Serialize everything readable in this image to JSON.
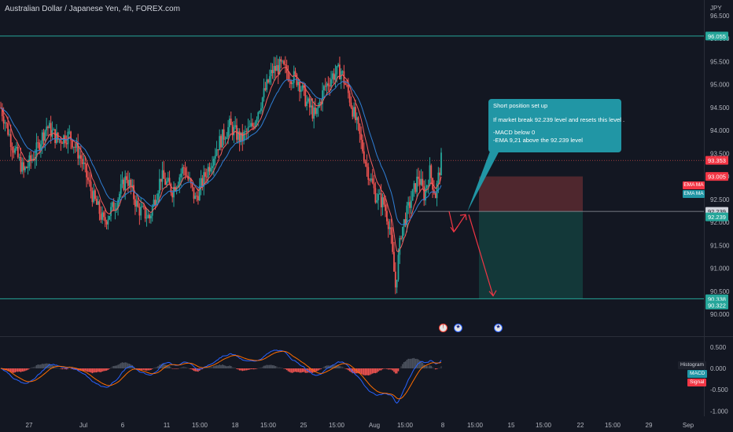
{
  "symbol_title": "Australian Dollar / Japanese Yen, 4h, FOREX.com",
  "currency": "JPY",
  "colors": {
    "background": "#131722",
    "up": "#26a69a",
    "down": "#ef5350",
    "line_teal": "#26a69a",
    "ema_red": "#f55d5d",
    "ema_blue": "#2f7fd6",
    "macd_line": "#2962ff",
    "signal_line": "#ff6d00",
    "note_bg": "#2196a5",
    "stop_zone": "#5a2a30",
    "target_zone": "#143c3c",
    "arrow": "#f23645"
  },
  "chart_data": {
    "type": "candlestick",
    "price_axis": {
      "ticks": [
        "96.500",
        "96.000",
        "95.500",
        "95.000",
        "94.500",
        "94.000",
        "93.500",
        "93.000",
        "92.500",
        "92.000",
        "91.500",
        "91.000",
        "90.500",
        "90.000"
      ],
      "range": [
        89.9,
        96.6
      ]
    },
    "time_axis": {
      "ticks": [
        "27",
        "Jul",
        "6",
        "11",
        "15:00",
        "18",
        "15:00",
        "25",
        "15:00",
        "Aug",
        "15:00",
        "8",
        "15:00",
        "15",
        "15:00",
        "22",
        "15:00",
        "29",
        "Sep"
      ]
    },
    "horizontal_lines": [
      {
        "price": 96.055,
        "label": "96.055"
      },
      {
        "price": 90.338,
        "label": "90.338"
      }
    ],
    "entry_level": {
      "price": 92.239,
      "label": "92.239",
      "second_label": "92.239"
    },
    "price_labels": [
      {
        "text": "93.353",
        "price": 93.35,
        "kind": "last"
      },
      {
        "text": "93.005",
        "price": 93.0,
        "kind": "ema"
      },
      {
        "text": "90.322",
        "price": 90.322,
        "kind": "target"
      }
    ],
    "position": {
      "type": "short",
      "entry": 92.239,
      "stop": 93.0,
      "target": 90.338
    },
    "series_close_waypoints": [
      [
        0,
        94.5
      ],
      [
        8,
        93.7
      ],
      [
        16,
        93.1
      ],
      [
        24,
        93.5
      ],
      [
        32,
        94.1
      ],
      [
        40,
        93.8
      ],
      [
        48,
        93.9
      ],
      [
        56,
        93.4
      ],
      [
        64,
        92.6
      ],
      [
        72,
        92.0
      ],
      [
        80,
        92.4
      ],
      [
        88,
        93.0
      ],
      [
        96,
        92.3
      ],
      [
        104,
        92.1
      ],
      [
        112,
        93.0
      ],
      [
        120,
        92.7
      ],
      [
        128,
        93.2
      ],
      [
        136,
        92.5
      ],
      [
        144,
        93.1
      ],
      [
        152,
        93.7
      ],
      [
        160,
        94.1
      ],
      [
        168,
        93.8
      ],
      [
        176,
        94.1
      ],
      [
        184,
        94.8
      ],
      [
        190,
        95.3
      ],
      [
        196,
        95.4
      ],
      [
        202,
        95.2
      ],
      [
        208,
        95.1
      ],
      [
        214,
        94.6
      ],
      [
        220,
        94.3
      ],
      [
        226,
        94.9
      ],
      [
        232,
        95.2
      ],
      [
        238,
        95.3
      ],
      [
        244,
        94.7
      ],
      [
        250,
        94.0
      ],
      [
        256,
        93.2
      ],
      [
        262,
        92.6
      ],
      [
        268,
        92.4
      ],
      [
        272,
        91.9
      ],
      [
        276,
        90.6
      ],
      [
        280,
        91.8
      ],
      [
        286,
        92.4
      ],
      [
        292,
        93.0
      ],
      [
        296,
        92.6
      ],
      [
        300,
        93.1
      ],
      [
        304,
        92.6
      ],
      [
        308,
        93.35
      ]
    ],
    "ema_legend": [
      "EMA MA",
      "EMA MA"
    ],
    "macd": {
      "axis_ticks": [
        "0.500",
        "0.000",
        "-0.500",
        "-1.000"
      ],
      "range": [
        -1.12,
        0.68
      ],
      "legend": [
        {
          "text": "Histogram",
          "color": "#1e222d"
        },
        {
          "text": "MACD",
          "color": "#2196a5"
        },
        {
          "text": "Signal",
          "color": "#f23645"
        }
      ]
    }
  },
  "annotation": {
    "title": "Short position set up",
    "line1": "If market break 92.239 level and resets this level .",
    "line2": "-MACD below 0",
    "line3": "-EMA 9,21 above the 92.239 level"
  },
  "events": [
    {
      "icon": "event-flag-icon",
      "glyph": "!"
    },
    {
      "icon": "australia-flag-icon",
      "glyph": "★"
    },
    {
      "icon": "australia-flag-icon",
      "glyph": "★"
    }
  ]
}
